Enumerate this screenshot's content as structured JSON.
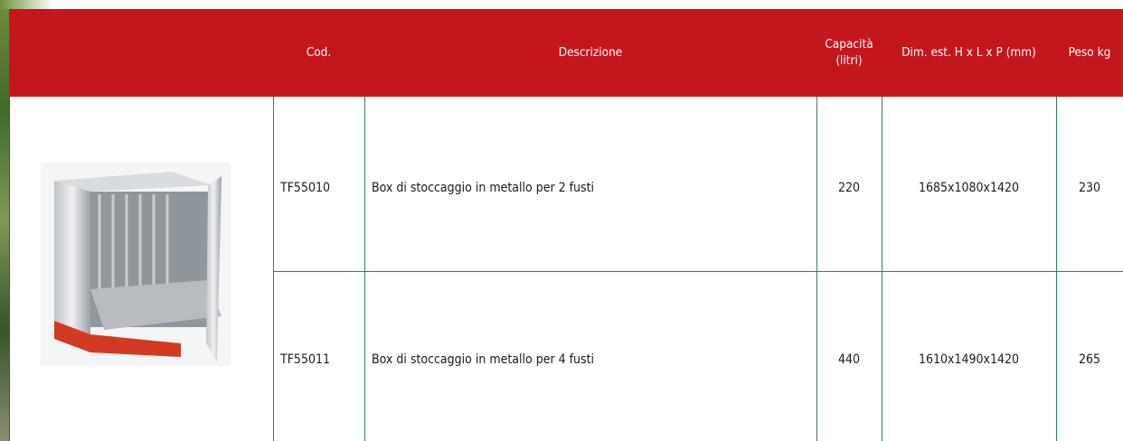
{
  "table": {
    "header": [
      "Cod.",
      "Descrizione",
      "Capacità\n(litri)",
      "Dim. est. H x L x P (mm)",
      "Peso kg"
    ],
    "rows": [
      [
        "TF55010",
        "Box di stoccaggio in metallo per 2 fusti",
        "220",
        "1685x1080x1420",
        "230"
      ],
      [
        "TF55011",
        "Box di stoccaggio in metallo per 4 fusti",
        "440",
        "1610x1490x1420",
        "265"
      ]
    ]
  }
}
